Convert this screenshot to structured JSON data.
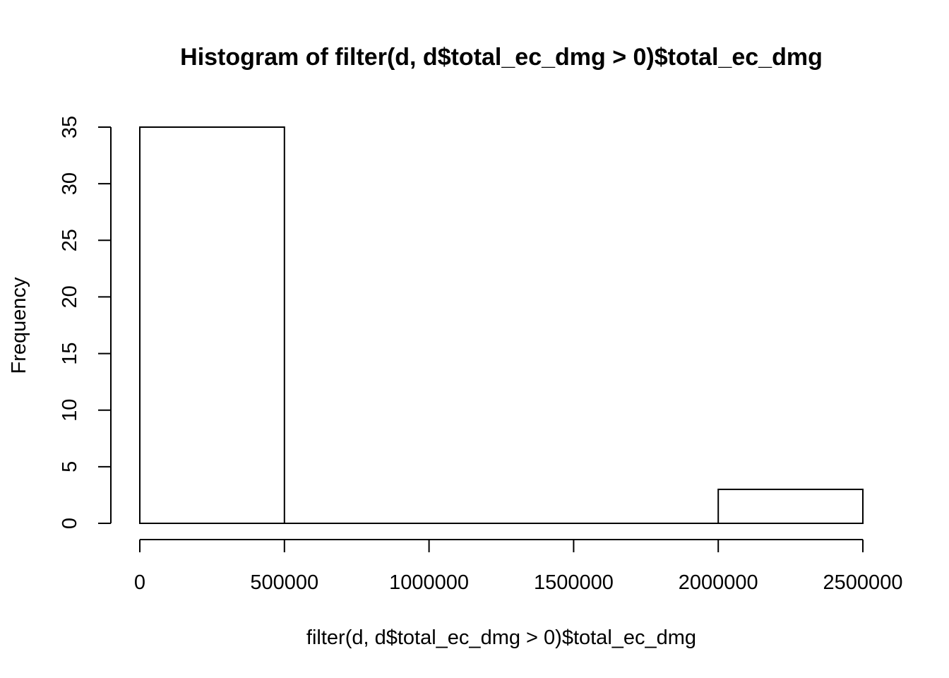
{
  "chart_data": {
    "type": "bar",
    "title": "Histogram of filter(d, d$total_ec_dmg > 0)$total_ec_dmg",
    "xlabel": "filter(d, d$total_ec_dmg > 0)$total_ec_dmg",
    "ylabel": "Frequency",
    "bins": [
      {
        "start": 0,
        "end": 500000,
        "count": 35
      },
      {
        "start": 500000,
        "end": 1000000,
        "count": 0
      },
      {
        "start": 1000000,
        "end": 1500000,
        "count": 0
      },
      {
        "start": 1500000,
        "end": 2000000,
        "count": 0
      },
      {
        "start": 2000000,
        "end": 2500000,
        "count": 3
      }
    ],
    "xlim": [
      0,
      2500000
    ],
    "ylim": [
      0,
      35
    ],
    "x_ticks": [
      0,
      500000,
      1000000,
      1500000,
      2000000,
      2500000
    ],
    "x_tick_labels": [
      "0",
      "500000",
      "1000000",
      "1500000",
      "2000000",
      "2500000"
    ],
    "y_ticks": [
      0,
      5,
      10,
      15,
      20,
      25,
      30,
      35
    ],
    "y_tick_labels": [
      "0",
      "5",
      "10",
      "15",
      "20",
      "25",
      "30",
      "35"
    ],
    "grid": false,
    "legend": "none"
  }
}
